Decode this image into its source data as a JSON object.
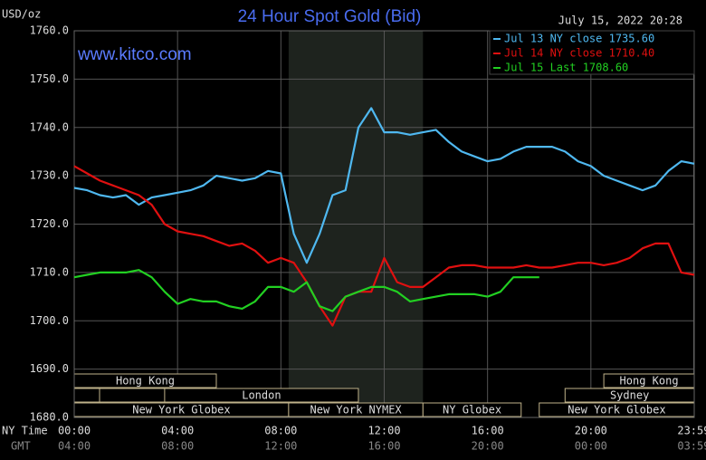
{
  "chart_data": {
    "type": "line",
    "title": "24 Hour Spot Gold (Bid)",
    "unit_label": "USD/oz",
    "timestamp": "July 15, 2022 20:28",
    "watermark": "www.kitco.com",
    "x_row_label": "NY Time",
    "x2_row_label": "GMT",
    "x": [
      0,
      0.5,
      1,
      1.5,
      2,
      2.5,
      3,
      3.5,
      4,
      4.5,
      5,
      5.5,
      6,
      6.5,
      7,
      7.5,
      8,
      8.5,
      9,
      9.5,
      10,
      10.5,
      11,
      11.5,
      12,
      12.5,
      13,
      13.5,
      14,
      14.5,
      15,
      15.5,
      16,
      16.5,
      17,
      17.5,
      18,
      18.5,
      19,
      19.5,
      20,
      20.5,
      21,
      21.5,
      22,
      22.5,
      23,
      23.5,
      24
    ],
    "series": [
      {
        "name": "Jul 13 NY close 1735.60",
        "color": "#4fb8f0",
        "values": [
          1727.5,
          1727,
          1726,
          1725.5,
          1726,
          1724,
          1725.5,
          1726,
          1726.5,
          1727,
          1728,
          1730,
          1729.5,
          1729,
          1729.5,
          1731,
          1730.5,
          1718,
          1712,
          1718,
          1726,
          1727,
          1740,
          1744,
          1739,
          1739,
          1738.5,
          1739,
          1739.5,
          1737,
          1735,
          1734,
          1733,
          1733.5,
          1735,
          1736,
          1736,
          1736,
          1735,
          1733,
          1732,
          1730,
          1729,
          1728,
          1727,
          1728,
          1731,
          1733,
          1732.5
        ]
      },
      {
        "name": "Jul 14 NY close 1710.40",
        "color": "#e01010",
        "values": [
          1732,
          1730.5,
          1729,
          1728,
          1727,
          1726,
          1724,
          1720,
          1718.5,
          1718,
          1717.5,
          1716.5,
          1715.5,
          1716,
          1714.5,
          1712,
          1713,
          1712,
          1708,
          1703,
          1699,
          1705,
          1706,
          1706,
          1713,
          1708,
          1707,
          1707,
          1709,
          1711,
          1711.5,
          1711.5,
          1711,
          1711,
          1711,
          1711.5,
          1711,
          1711,
          1711.5,
          1712,
          1712,
          1711.5,
          1712,
          1713,
          1715,
          1716,
          1716,
          1710,
          1709.5
        ]
      },
      {
        "name": "Jul 15 Last 1708.60",
        "color": "#22d022",
        "values": [
          1709,
          1709.5,
          1710,
          1710,
          1710,
          1710.5,
          1709,
          1706,
          1703.5,
          1704.5,
          1704,
          1704,
          1703,
          1702.5,
          1704,
          1707,
          1707,
          1706,
          1708,
          1703,
          1702,
          1705,
          1706,
          1707,
          1707,
          1706,
          1704,
          1704.5,
          1705,
          1705.5,
          1705.5,
          1705.5,
          1705,
          1706,
          1709,
          1709,
          1709,
          null,
          null,
          null,
          null,
          null,
          null,
          null,
          null,
          null,
          null,
          null,
          null
        ]
      }
    ],
    "xlim": [
      0,
      24
    ],
    "xticks": [
      {
        "value": 0,
        "label": "00:00"
      },
      {
        "value": 4,
        "label": "04:00"
      },
      {
        "value": 8,
        "label": "08:00"
      },
      {
        "value": 12,
        "label": "12:00"
      },
      {
        "value": 16,
        "label": "16:00"
      },
      {
        "value": 20,
        "label": "20:00"
      },
      {
        "value": 23.98,
        "label": "23:59"
      }
    ],
    "x2ticklabels": [
      "04:00",
      "08:00",
      "12:00",
      "16:00",
      "20:00",
      "00:00",
      "03:59"
    ],
    "ylim": [
      1680,
      1760
    ],
    "yticks": [
      {
        "value": 1680,
        "label": "1680.0"
      },
      {
        "value": 1690,
        "label": "1690.0"
      },
      {
        "value": 1700,
        "label": "1700.0"
      },
      {
        "value": 1710,
        "label": "1710.0"
      },
      {
        "value": 1720,
        "label": "1720.0"
      },
      {
        "value": 1730,
        "label": "1730.0"
      },
      {
        "value": 1740,
        "label": "1740.0"
      },
      {
        "value": 1750,
        "label": "1750.0"
      },
      {
        "value": 1760,
        "label": "1760.0"
      }
    ],
    "grid": true,
    "legend": "upper right",
    "sessions": [
      {
        "label": "Hong Kong",
        "start": 0,
        "end": 5.5
      },
      {
        "label": "London",
        "start": 3.5,
        "end": 11
      },
      {
        "label": "New York Globex",
        "start": 0,
        "end": 8.3
      },
      {
        "label": "New York NYMEX",
        "start": 8.3,
        "end": 13.5
      },
      {
        "label": "NY Globex",
        "start": 13.5,
        "end": 17.3
      },
      {
        "label": "Hong Kong",
        "start": 20.5,
        "end": 24
      },
      {
        "label": "Sydney",
        "start": 19,
        "end": 24
      },
      {
        "label": "New York Globex",
        "start": 18,
        "end": 24
      }
    ]
  }
}
